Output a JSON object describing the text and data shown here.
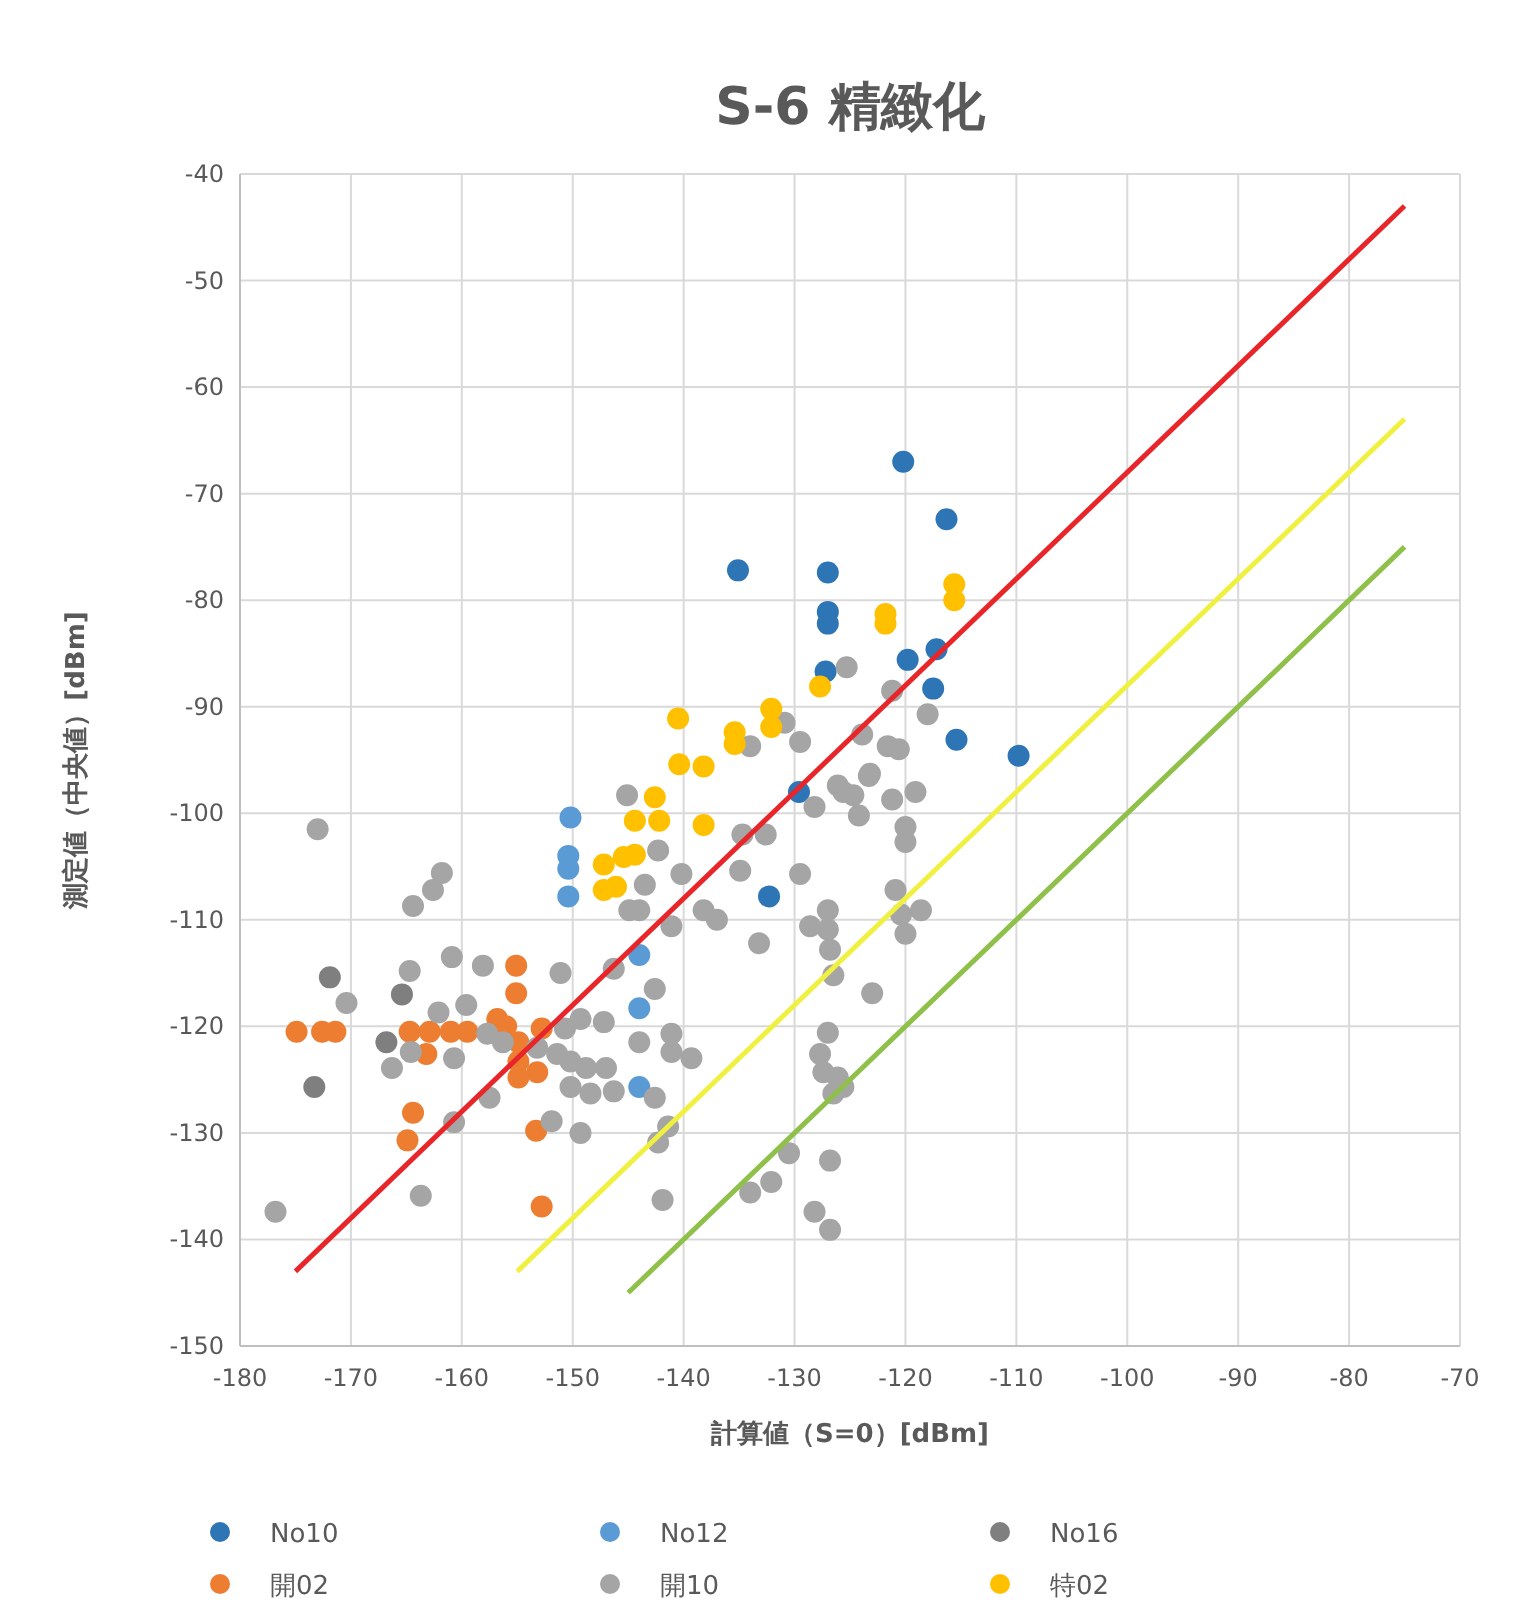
{
  "chart_data": {
    "type": "scatter",
    "title": "S-6 精緻化",
    "xlabel": "計算値（S=0）[dBm]",
    "ylabel": "測定値（中央値）[dBm]",
    "xlim": [
      -180,
      -70
    ],
    "xticks": [
      -180,
      -170,
      -160,
      -150,
      -140,
      -130,
      -120,
      -110,
      -100,
      -90,
      -80,
      -70
    ],
    "ylim": [
      -150,
      -40
    ],
    "yticks": [
      -150,
      -140,
      -130,
      -120,
      -110,
      -100,
      -90,
      -80,
      -70,
      -60,
      -50,
      -40
    ],
    "grid": true,
    "legend": "bottom",
    "marker": "circle",
    "series": [
      {
        "name": "No10",
        "color": "#2e75b6",
        "x": [
          -120.2,
          -116.3,
          -119.8,
          -117.2,
          -117.5,
          -115.4,
          -109.8,
          -135.1,
          -127,
          -127,
          -127,
          -127.2,
          -129.6,
          -132.3
        ],
        "values": [
          -67,
          -72.4,
          -85.6,
          -84.6,
          -88.3,
          -93.1,
          -94.6,
          -77.2,
          -77.4,
          -81.1,
          -82.2,
          -86.7,
          -98,
          -107.8
        ]
      },
      {
        "name": "No12",
        "color": "#5b9bd5",
        "x": [
          -150.2,
          -150.4,
          -150.4,
          -150.4,
          -144,
          -144,
          -144
        ],
        "values": [
          -100.4,
          -104,
          -105.2,
          -107.8,
          -113.3,
          -118.3,
          -125.7
        ]
      },
      {
        "name": "No16",
        "color": "#7f7f7f",
        "x": [
          -171.9,
          -165.4,
          -166.8,
          -173.3
        ],
        "values": [
          -115.4,
          -117,
          -121.5,
          -125.7
        ]
      },
      {
        "name": "開02",
        "color": "#ed7d31",
        "x": [
          -174.9,
          -172.6,
          -171.4,
          -164.7,
          -162.9,
          -161,
          -159.5,
          -163.2,
          -156.8,
          -156,
          -155.1,
          -155.1,
          -154.9,
          -154.9,
          -154.9,
          -164.4,
          -164.9,
          -152.8,
          null,
          -153.2,
          -153.3,
          -152.8
        ],
        "values": [
          -120.5,
          -120.5,
          -120.5,
          -120.5,
          -120.5,
          -120.5,
          -120.5,
          -122.6,
          -119.3,
          -120,
          -114.3,
          -116.9,
          -121.5,
          -123.3,
          -124.8,
          -128.1,
          -130.7,
          -120.2,
          null,
          -124.3,
          -129.8,
          -136.9
        ]
      },
      {
        "name": "開10",
        "color": "#a5a5a5",
        "x": [
          -121.2,
          -118,
          -121.6,
          -120.6,
          -123.2,
          -121.2,
          -119.1,
          -120,
          -120,
          -120.9,
          -120.4,
          -118.6,
          -120,
          -125.3,
          -130.9,
          -129.5,
          -123.9,
          -145.1,
          -134,
          -123.3,
          -126.1,
          -124.7,
          -124.2,
          -128.2,
          -142.3,
          -143.5,
          -144,
          -144.9,
          -140.2,
          -134.9,
          -129.5,
          -134.7,
          -132.6,
          -125.6,
          -141.1,
          -138.2,
          -137,
          -133.2,
          -128.6,
          -127,
          -127,
          -126.8,
          -126.5,
          -123,
          -142.6,
          -146.3,
          -151.1,
          -147.2,
          -149.3,
          -144,
          -141.1,
          -141.1,
          -139.3,
          -150.2,
          -148.8,
          -147,
          -146.3,
          -148.4,
          -150.2,
          -142.6,
          -149.3,
          -151.9,
          -141.4,
          -142.3,
          -141.9,
          -130.5,
          -126.8,
          -134,
          -132.1,
          -128.2,
          -126.8,
          -127,
          -127.7,
          -127.4,
          -126.1,
          -125.6,
          -126.5,
          -173,
          -164.4,
          -162.6,
          -161.8,
          -170.4,
          -176.8,
          -164.7,
          -160.9,
          -158.1,
          -166.3,
          -164.6,
          -162.1,
          -159.6,
          -160.7,
          -157.7,
          -156.3,
          -153.2,
          -151.4,
          -150.7,
          -160.7,
          -163.7,
          -157.5
        ],
        "values": [
          -88.5,
          -90.7,
          -93.7,
          -94,
          -96.3,
          -98.7,
          -98,
          -101.3,
          -102.7,
          -107.2,
          -109.5,
          -109.1,
          -111.3,
          -86.3,
          -91.5,
          -93.3,
          -92.6,
          -98.3,
          -93.7,
          -96.5,
          -97.4,
          -98.3,
          -100.2,
          -99.4,
          -103.5,
          -106.7,
          -109.1,
          -109.1,
          -105.7,
          -105.4,
          -105.7,
          -102,
          -102,
          -98,
          -110.6,
          -109.1,
          -110,
          -112.2,
          -110.6,
          -109.1,
          -110.9,
          -112.8,
          -115.2,
          -116.9,
          -116.5,
          -114.6,
          -115,
          -119.6,
          -119.3,
          -121.5,
          -120.7,
          -122.4,
          -123,
          -123.3,
          -123.9,
          -123.9,
          -126.1,
          -126.3,
          -125.7,
          -126.7,
          -130,
          -128.9,
          -129.4,
          -130.9,
          -136.3,
          -131.9,
          -132.6,
          -135.6,
          -134.6,
          -137.4,
          -139.1,
          -120.6,
          -122.6,
          -124.3,
          -124.8,
          -125.7,
          -126.3,
          -101.5,
          -108.7,
          -107.2,
          -105.6,
          -117.8,
          -137.4,
          -114.8,
          -113.5,
          -114.3,
          -123.9,
          -122.4,
          -118.7,
          -118,
          -123,
          -120.7,
          -121.5,
          -122,
          -122.6,
          -120.2,
          -129,
          -135.9,
          -126.7
        ]
      },
      {
        "name": "特02",
        "color": "#ffc000",
        "x": [
          -115.6,
          -115.6,
          -121.8,
          -121.8,
          -127.7,
          -140.5,
          -135.4,
          -135.4,
          -132.1,
          -132.1,
          -140.4,
          -138.2,
          -142.6,
          -144.4,
          -142.2,
          -138.2,
          -147.2,
          -145.4,
          -144.4,
          -147.2,
          -146.1
        ],
        "values": [
          -78.5,
          -80,
          -81.3,
          -82.2,
          -88.1,
          -91.1,
          -92.4,
          -93.5,
          -90.2,
          -91.9,
          -95.4,
          -95.6,
          -98.5,
          -100.7,
          -100.7,
          -101.1,
          -104.8,
          -104.1,
          -103.9,
          -107.2,
          -106.9
        ]
      },
      {
        "type": "line",
        "marker": "none",
        "color": "#e8262a",
        "x": [
          -175,
          -75
        ],
        "values": [
          -143,
          -43
        ]
      },
      {
        "type": "line",
        "marker": "none",
        "color": "#f0f040",
        "x": [
          -155,
          -75
        ],
        "values": [
          -143,
          -63
        ]
      },
      {
        "type": "line",
        "marker": "none",
        "color": "#8fc04a",
        "x": [
          -145,
          -75
        ],
        "values": [
          -145,
          -75
        ]
      }
    ]
  }
}
